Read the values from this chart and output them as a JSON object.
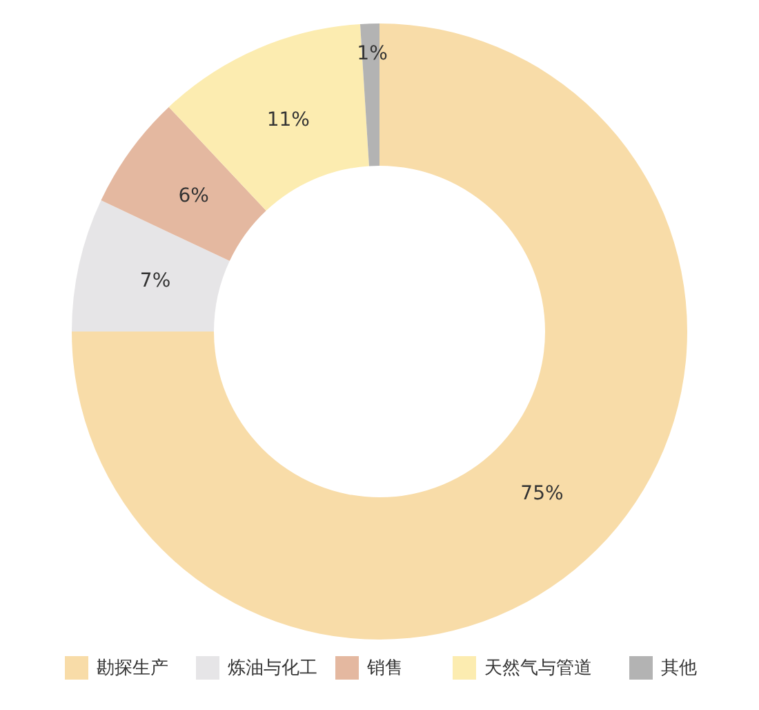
{
  "chart_data": {
    "type": "donut",
    "categories": [
      "勘探生产",
      "炼油与化工",
      "销售",
      "天然气与管道",
      "其他"
    ],
    "values": [
      75,
      7,
      6,
      11,
      1
    ],
    "colors": [
      "#f8dca8",
      "#e6e5e7",
      "#e4b8a0",
      "#fcecb0",
      "#b3b3b3"
    ],
    "value_labels": [
      "75%",
      "7%",
      "6%",
      "11%",
      "1%"
    ],
    "legend": "bottom"
  }
}
